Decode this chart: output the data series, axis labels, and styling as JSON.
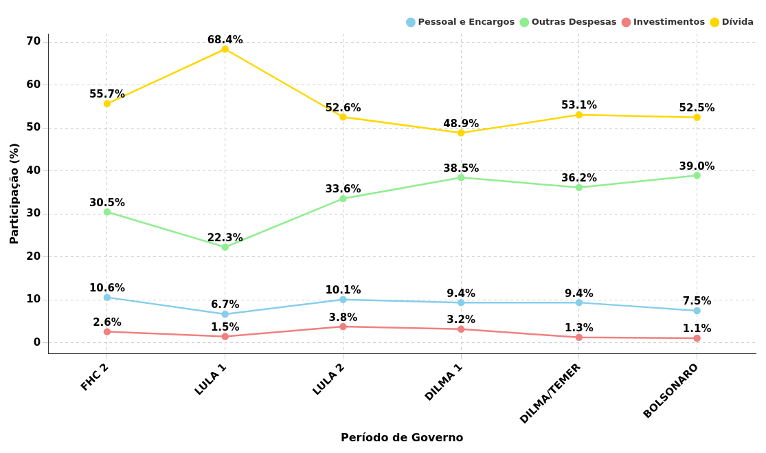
{
  "chart_data": {
    "type": "line",
    "xlabel": "Período de Governo",
    "ylabel": "Participação (%)",
    "categories": [
      "FHC 2",
      "LULA 1",
      "LULA 2",
      "DILMA 1",
      "DILMA/TEMER",
      "BOLSONARO"
    ],
    "ylim": [
      -2.5,
      72
    ],
    "yticks": [
      0,
      10,
      20,
      30,
      40,
      50,
      60,
      70
    ],
    "grid": true,
    "legend": "top right",
    "marker": "circle",
    "line_style": "solid",
    "series": [
      {
        "name": "Pessoal e Encargos",
        "color": "#87ceeb",
        "values": [
          10.6,
          6.7,
          10.1,
          9.4,
          9.4,
          7.5
        ],
        "value_labels": [
          "10.6%",
          "6.7%",
          "10.1%",
          "9.4%",
          "9.4%",
          "7.5%"
        ]
      },
      {
        "name": "Outras Despesas",
        "color": "#90ee90",
        "values": [
          30.5,
          22.3,
          33.6,
          38.5,
          36.2,
          39.0
        ],
        "value_labels": [
          "30.5%",
          "22.3%",
          "33.6%",
          "38.5%",
          "36.2%",
          "39.0%"
        ]
      },
      {
        "name": "Investimentos",
        "color": "#f08080",
        "values": [
          2.6,
          1.5,
          3.8,
          3.2,
          1.3,
          1.1
        ],
        "value_labels": [
          "2.6%",
          "1.5%",
          "3.8%",
          "3.2%",
          "1.3%",
          "1.1%"
        ]
      },
      {
        "name": "Dívida",
        "color": "#ffd700",
        "values": [
          55.7,
          68.4,
          52.6,
          48.9,
          53.1,
          52.5
        ],
        "value_labels": [
          "55.7%",
          "68.4%",
          "52.6%",
          "48.9%",
          "53.1%",
          "52.5%"
        ]
      }
    ]
  }
}
